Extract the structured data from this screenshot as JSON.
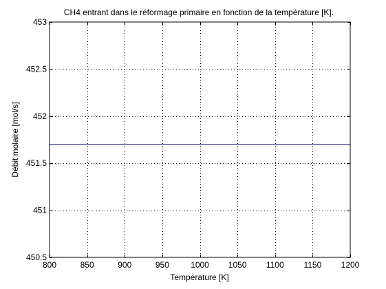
{
  "chart_data": {
    "type": "line",
    "title": "CH4 entrant dans le réformage primaire en fonction de la température [K].",
    "xlabel": "Température [K]",
    "ylabel": "Débit molaire [mol/s]",
    "xlim": [
      800,
      1200
    ],
    "ylim": [
      450.5,
      453
    ],
    "xticks": [
      800,
      850,
      900,
      950,
      1000,
      1050,
      1100,
      1150,
      1200
    ],
    "yticks": [
      450.5,
      451,
      451.5,
      452,
      452.5,
      453
    ],
    "ytick_labels": [
      "450.5",
      "451",
      "451.5",
      "452",
      "452.5",
      "453"
    ],
    "grid": true,
    "grid_style": "dotted",
    "series": [
      {
        "color": "#000080",
        "x": [
          800,
          1200
        ],
        "y": [
          451.7,
          451.7
        ]
      }
    ]
  }
}
